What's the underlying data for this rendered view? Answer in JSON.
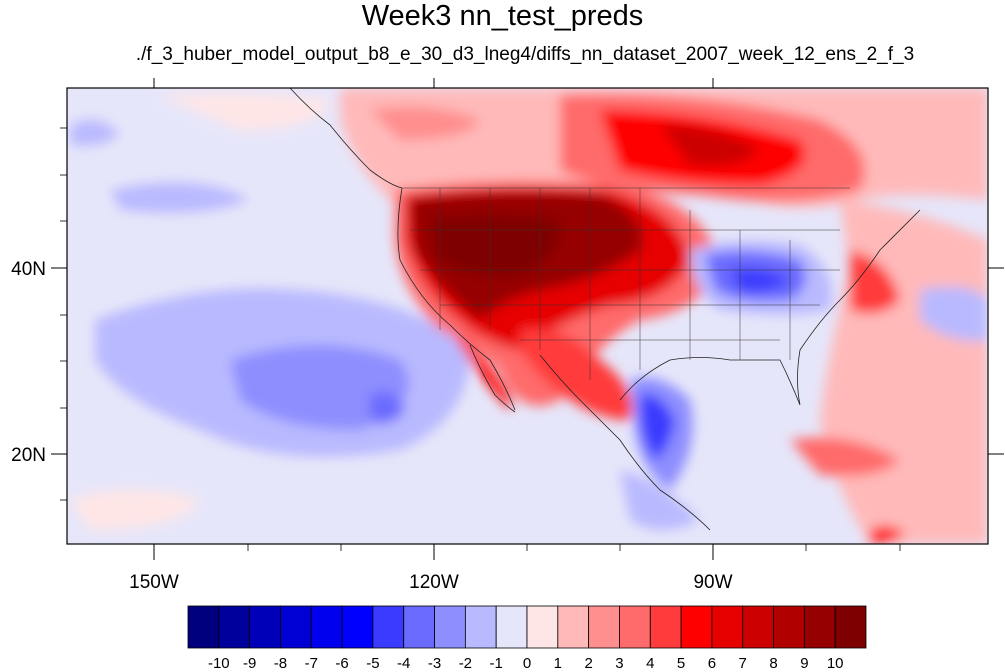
{
  "title": "Week3 nn_test_preds",
  "subtitle": "./f_3_huber_model_output_b8_e_30_d3_lneg4/diffs_nn_dataset_2007_week_12_ens_2_f_3",
  "axes": {
    "lon_labels": [
      "150W",
      "120W",
      "90W"
    ],
    "lat_labels": [
      "40N",
      "20N"
    ]
  },
  "colorbar": {
    "labels": [
      "-10",
      "-9",
      "-8",
      "-7",
      "-6",
      "-5",
      "-4",
      "-3",
      "-2",
      "-1",
      "0",
      "1",
      "2",
      "3",
      "4",
      "5",
      "6",
      "7",
      "8",
      "9",
      "10"
    ],
    "colors": [
      "#00007f",
      "#00009c",
      "#0000b8",
      "#0000d4",
      "#0000ee",
      "#0000ff",
      "#3b3bff",
      "#6a6aff",
      "#8e8eff",
      "#b9b9ff",
      "#e6e6fa",
      "#ffe6e6",
      "#ffb9b9",
      "#ff8e8e",
      "#ff6a6a",
      "#ff3b3b",
      "#ff0000",
      "#e60000",
      "#cc0000",
      "#b00000",
      "#960000",
      "#7f0000"
    ]
  },
  "map": {
    "background": "#e6e6fa",
    "regions": [
      {
        "name": "central-west-us-warm",
        "level": 21
      },
      {
        "name": "canada-warm",
        "level": 16
      },
      {
        "name": "ohio-valley-cool",
        "level": 6
      },
      {
        "name": "gulf-cool",
        "level": 5
      },
      {
        "name": "east-pacific-cool",
        "level": 8
      },
      {
        "name": "atlantic-warm",
        "level": 13
      }
    ]
  }
}
